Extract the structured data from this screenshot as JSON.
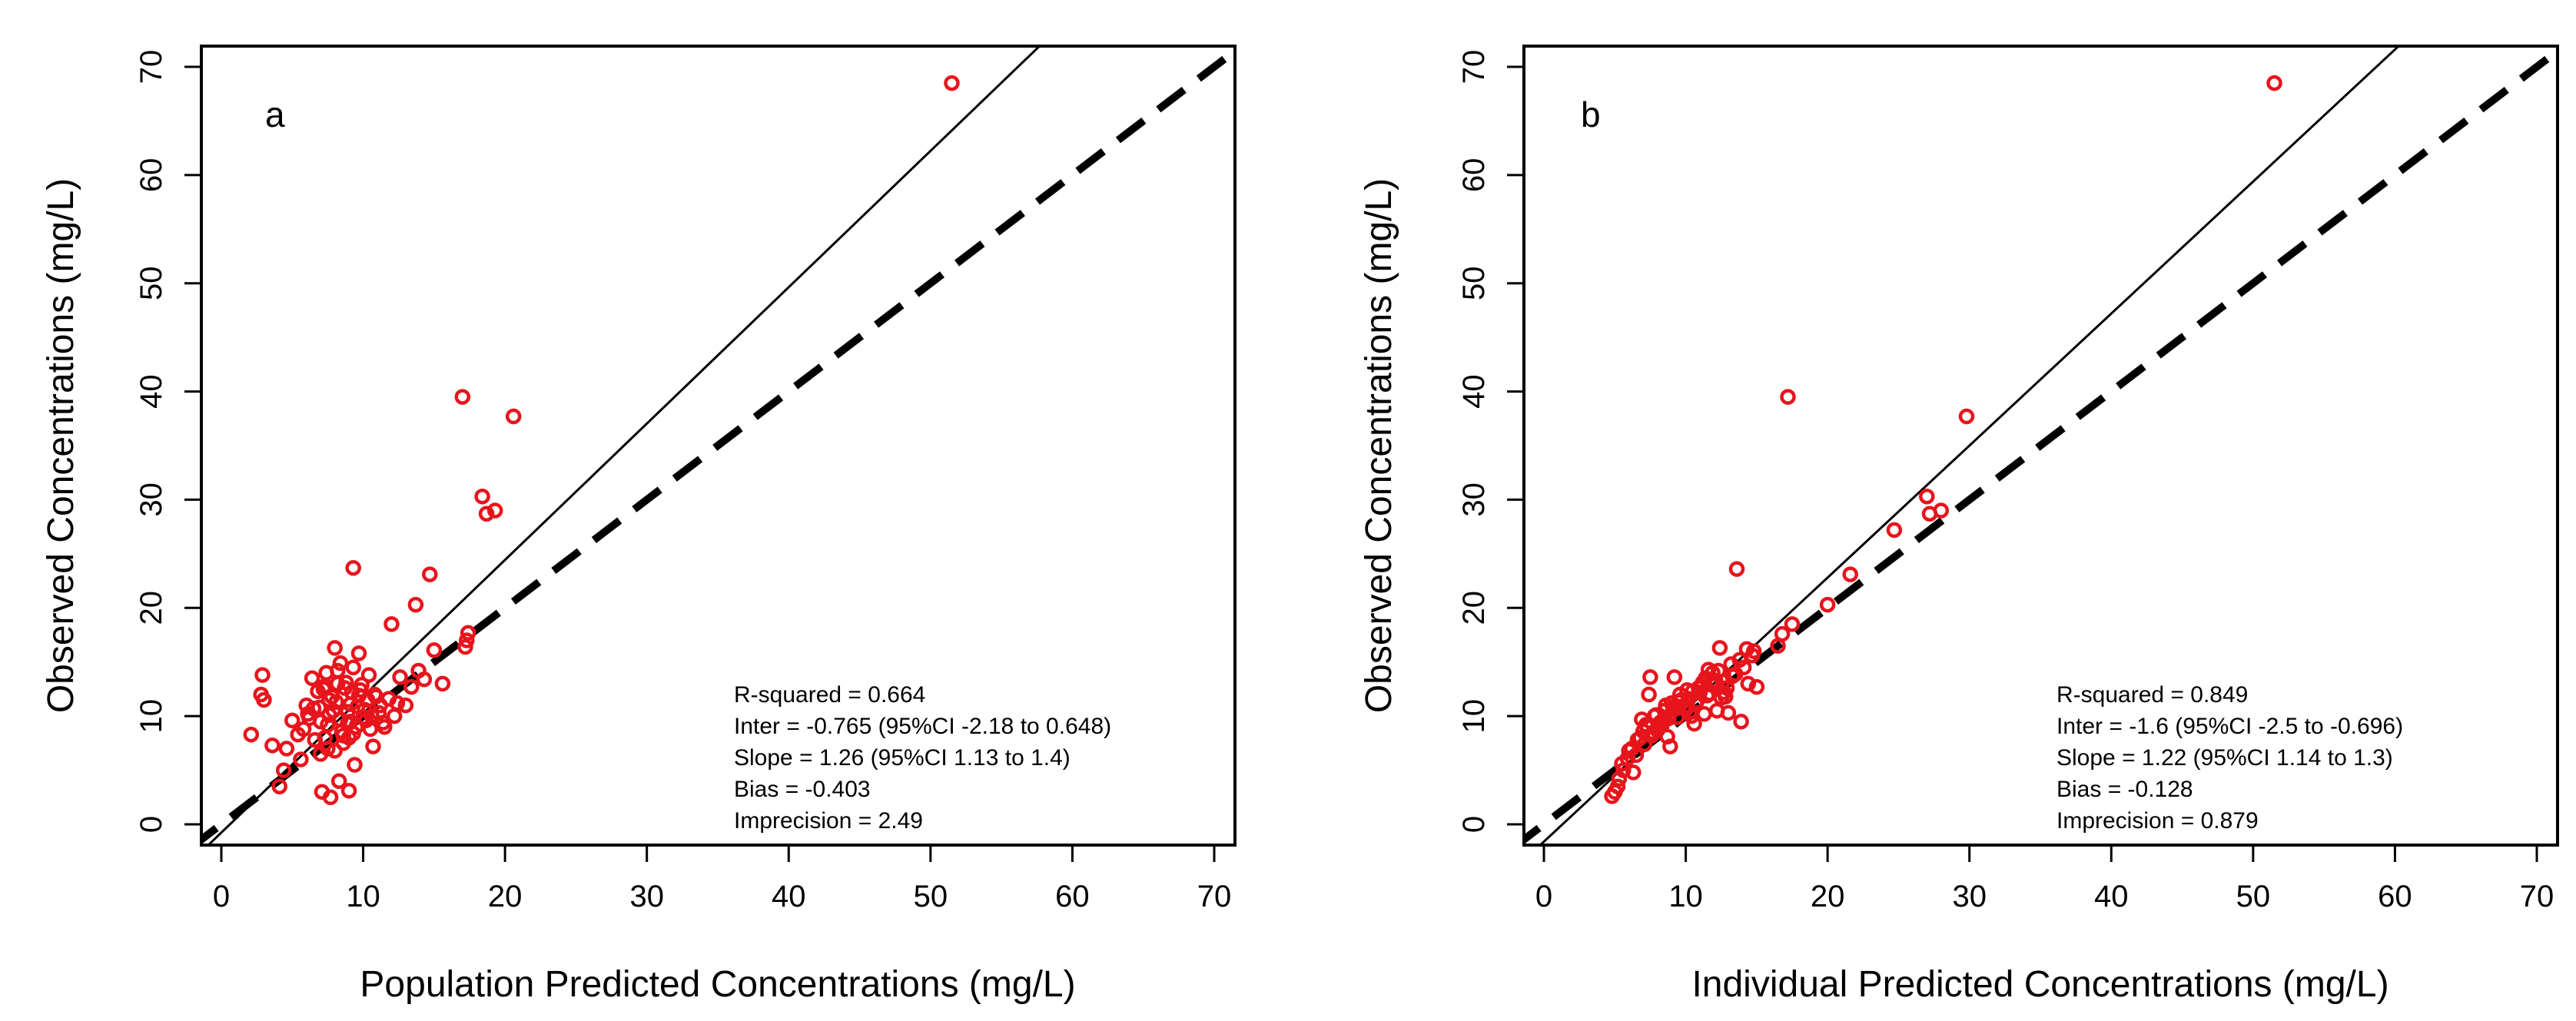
{
  "chart_data": [
    {
      "type": "scatter",
      "panel_label": "a",
      "xlabel": "Population Predicted Concentrations (mg/L)",
      "ylabel": "Observed Concentrations (mg/L)",
      "xlim": [
        0,
        70
      ],
      "ylim": [
        0,
        70
      ],
      "xticks": [
        0,
        10,
        20,
        30,
        40,
        50,
        60,
        70
      ],
      "yticks": [
        0,
        10,
        20,
        30,
        40,
        50,
        60,
        70
      ],
      "grid": false,
      "legend": "none",
      "point_color": "#e8141c",
      "lines": [
        {
          "name": "identity",
          "style": "dashed",
          "slope": 1,
          "intercept": 0
        },
        {
          "name": "regression",
          "style": "solid",
          "slope": 1.26,
          "intercept": -0.765
        }
      ],
      "annotations": [
        "R-squared = 0.664",
        "Inter = -0.765 (95%CI -2.18 to 0.648)",
        "Slope = 1.26 (95%CI 1.13 to 1.4)",
        "Bias = -0.403",
        "Imprecision  = 2.49"
      ],
      "series": [
        {
          "name": "observations",
          "x": [
            51.5,
            17.0,
            20.6,
            18.4,
            18.7,
            19.3,
            17.4,
            14.7,
            13.7,
            12.0,
            17.3,
            17.2,
            15.0,
            15.6,
            9.3,
            9.0,
            2.1,
            2.8,
            2.9,
            3.0,
            3.6,
            4.1,
            4.4,
            4.6,
            5.0,
            5.4,
            5.6,
            6.0,
            6.4,
            6.8,
            7.0,
            7.3,
            7.4,
            7.6,
            7.8,
            8.0,
            8.2,
            8.4,
            8.6,
            8.7,
            8.9,
            9.1,
            9.3,
            9.5,
            9.7,
            9.9,
            10.1,
            10.3,
            10.5,
            10.8,
            11.1,
            11.4,
            11.8,
            12.2,
            12.6,
            13.0,
            13.4,
            13.9,
            14.3,
            6.2,
            6.6,
            6.9,
            7.2,
            7.5,
            7.9,
            8.1,
            8.5,
            8.8,
            9.2,
            9.6,
            10.0,
            10.4,
            10.9,
            7.1,
            7.7,
            8.3,
            9.4,
            8.0,
            7.5,
            8.6,
            9.0,
            9.8,
            10.6,
            11.2,
            12.4,
            6.5,
            5.8,
            7.0,
            8.9,
            10.2,
            11.5,
            7.6,
            8.4,
            9.1,
            9.7,
            10.7,
            6.1,
            7.3,
            8.2,
            9.3
          ],
          "y": [
            68.5,
            39.5,
            37.7,
            30.3,
            28.7,
            29.0,
            17.7,
            23.1,
            20.3,
            18.5,
            17.0,
            16.4,
            16.1,
            13.0,
            23.7,
            3.1,
            8.3,
            12.0,
            13.8,
            11.5,
            7.3,
            3.5,
            5.0,
            7.0,
            9.6,
            8.3,
            6.0,
            11.0,
            13.5,
            12.3,
            9.5,
            8.0,
            14.0,
            10.1,
            11.8,
            16.3,
            13.0,
            9.7,
            8.2,
            12.6,
            10.4,
            11.1,
            14.5,
            9.0,
            15.8,
            12.9,
            10.6,
            11.5,
            8.8,
            12.0,
            10.3,
            9.4,
            11.6,
            10.0,
            13.6,
            11.0,
            12.7,
            14.2,
            13.4,
            9.8,
            7.8,
            10.8,
            12.5,
            9.2,
            10.5,
            11.3,
            8.6,
            13.1,
            12.2,
            10.9,
            9.9,
            13.8,
            11.8,
            3.0,
            2.5,
            4.0,
            5.5,
            6.8,
            7.0,
            7.5,
            8.0,
            12.4,
            10.0,
            11.0,
            11.2,
            10.7,
            8.8,
            6.5,
            9.3,
            9.6,
            9.0,
            11.5,
            14.9,
            9.5,
            11.9,
            7.2,
            10.2,
            12.8,
            14.2,
            8.4
          ]
        }
      ]
    },
    {
      "type": "scatter",
      "panel_label": "b",
      "xlabel": "Individual Predicted Concentrations (mg/L)",
      "ylabel": "Observed Concentrations (mg/L)",
      "xlim": [
        0,
        70
      ],
      "ylim": [
        0,
        70
      ],
      "xticks": [
        0,
        10,
        20,
        30,
        40,
        50,
        60,
        70
      ],
      "yticks": [
        0,
        10,
        20,
        30,
        40,
        50,
        60,
        70
      ],
      "grid": false,
      "legend": "none",
      "point_color": "#e8141c",
      "lines": [
        {
          "name": "identity",
          "style": "dashed",
          "slope": 1,
          "intercept": 0
        },
        {
          "name": "regression",
          "style": "solid",
          "slope": 1.22,
          "intercept": -1.6
        }
      ],
      "annotations": [
        "R-squared = 0.849",
        "Inter = -1.6 (95%CI -2.5 to -0.696)",
        "Slope = 1.22 (95%CI 1.14 to 1.3)",
        "Bias = -0.128",
        "Imprecision  = 0.879"
      ],
      "series": [
        {
          "name": "observations",
          "x": [
            51.5,
            17.2,
            29.8,
            27.0,
            27.2,
            28.0,
            24.7,
            21.6,
            20.0,
            17.5,
            16.8,
            16.5,
            14.3,
            14.8,
            13.6,
            5.0,
            5.3,
            5.6,
            5.9,
            6.2,
            6.5,
            6.8,
            7.0,
            7.3,
            7.6,
            7.9,
            8.2,
            8.5,
            8.8,
            9.0,
            9.3,
            9.6,
            9.9,
            10.2,
            10.5,
            10.8,
            11.1,
            11.4,
            11.7,
            12.0,
            12.3,
            12.6,
            12.9,
            13.2,
            13.5,
            13.8,
            14.1,
            14.4,
            14.7,
            15.0,
            6.0,
            6.6,
            7.2,
            7.8,
            8.4,
            9.1,
            9.7,
            10.3,
            10.9,
            11.5,
            12.1,
            12.7,
            13.3,
            8.0,
            8.6,
            9.4,
            10.1,
            10.7,
            11.3,
            11.9,
            12.5,
            4.8,
            5.2,
            5.5,
            6.3,
            7.1,
            7.7,
            8.3,
            9.2,
            10.0,
            10.6,
            11.2,
            11.8,
            12.4,
            13.0,
            13.9,
            7.4,
            8.1,
            8.9,
            9.5,
            10.4,
            11.0,
            11.6,
            12.2,
            12.8,
            6.9,
            7.5,
            8.7
          ],
          "y": [
            68.5,
            39.5,
            37.7,
            30.3,
            28.7,
            29.0,
            27.2,
            23.1,
            20.3,
            18.5,
            17.6,
            16.5,
            16.2,
            16.0,
            23.6,
            3.0,
            4.2,
            5.0,
            6.1,
            7.0,
            6.4,
            8.0,
            8.6,
            9.0,
            8.2,
            10.1,
            9.4,
            10.5,
            9.8,
            11.2,
            10.7,
            12.0,
            10.9,
            11.6,
            12.3,
            11.4,
            12.8,
            13.5,
            12.1,
            13.0,
            14.2,
            13.2,
            12.6,
            14.8,
            13.9,
            15.2,
            14.5,
            13.0,
            15.6,
            12.7,
            6.8,
            7.8,
            9.2,
            10.0,
            9.6,
            10.8,
            11.5,
            10.4,
            12.6,
            11.9,
            13.3,
            12.2,
            13.7,
            8.7,
            11.0,
            9.9,
            12.4,
            11.1,
            10.2,
            14.0,
            11.7,
            2.6,
            3.5,
            5.6,
            4.8,
            7.4,
            8.5,
            9.1,
            13.6,
            10.6,
            9.3,
            13.1,
            12.9,
            16.3,
            10.3,
            9.5,
            12.0,
            8.9,
            7.2,
            11.3,
            10.0,
            12.2,
            14.3,
            10.5,
            11.8,
            9.7,
            13.6,
            8.1
          ]
        }
      ]
    }
  ]
}
